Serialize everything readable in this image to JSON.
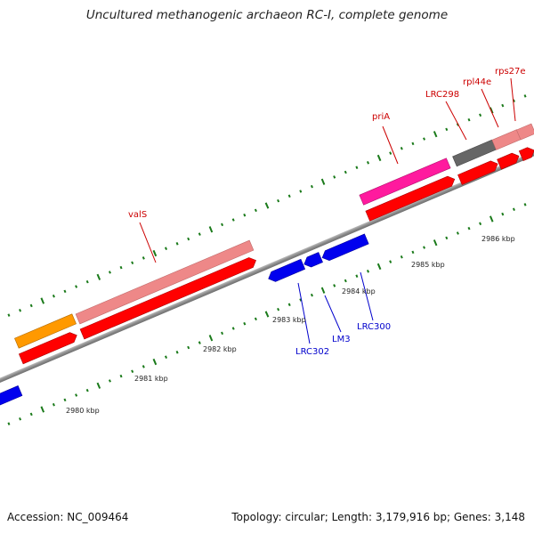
{
  "title": "Uncultured methanogenic archaeon RC-I, complete genome",
  "footer": {
    "accession": "Accession: NC_009464",
    "summary": "Topology: circular; Length: 3,179,916 bp; Genes: 3,148"
  },
  "map": {
    "colors": {
      "backbone": "#8c8c8c",
      "tick": "#1a7a1a",
      "forward_label": "#cc0000",
      "reverse_label": "#0000cc"
    },
    "kbp_labels": [
      "2980 kbp",
      "2981 kbp",
      "2982 kbp",
      "2983 kbp",
      "2984 kbp",
      "2985 kbp",
      "2986 kbp"
    ],
    "gene_labels": {
      "forward": [
        "valS",
        "priA",
        "LRC298",
        "rpl44e",
        "rps27e"
      ],
      "reverse": [
        "LRC302",
        "LM3",
        "LRC300"
      ]
    },
    "gene_colors": {
      "salmon": "#ee8888",
      "red": "#ff0000",
      "orange": "#ff9900",
      "magenta": "#ff1a9e",
      "gray": "#666666",
      "blue": "#0000ee"
    }
  }
}
